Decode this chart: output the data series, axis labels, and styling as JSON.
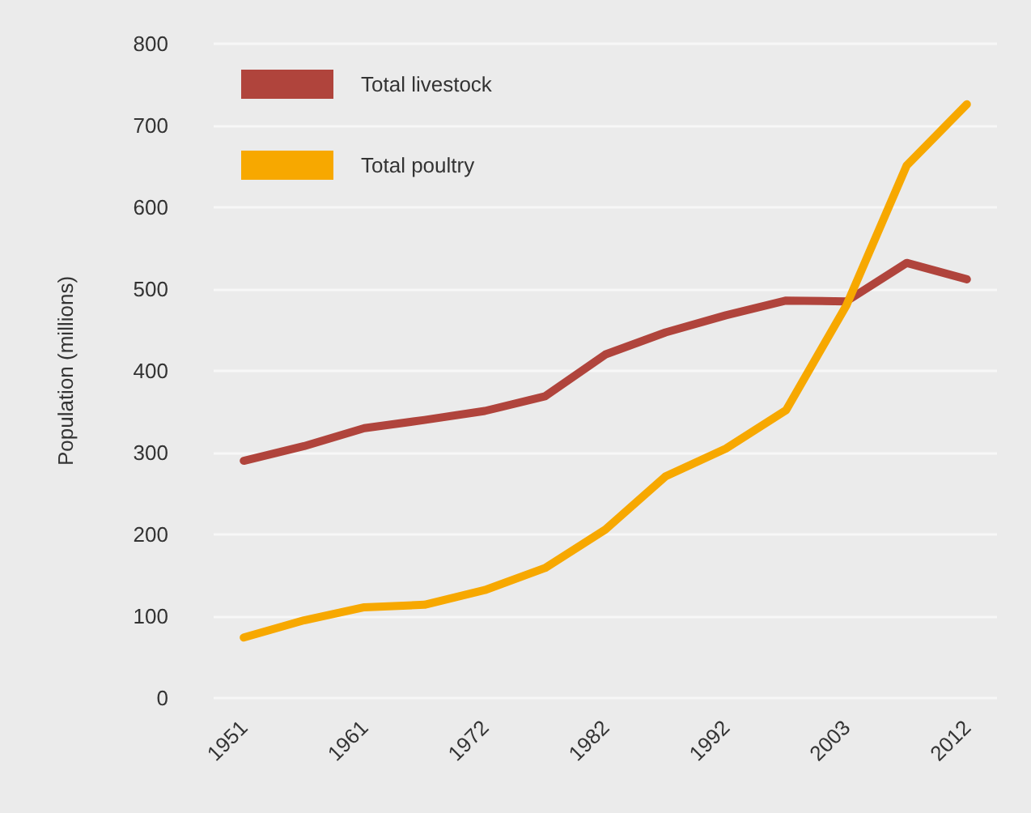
{
  "chart_data": {
    "type": "line",
    "ylabel": "Population (millions)",
    "categories": [
      "1951",
      null,
      "1961",
      null,
      "1972",
      null,
      "1982",
      null,
      "1992",
      null,
      "2003",
      null,
      "2012"
    ],
    "series": [
      {
        "name": "Total livestock",
        "color": "#b0443c",
        "values": [
          290,
          308,
          330,
          340,
          351,
          369,
          420,
          447,
          468,
          486,
          485,
          532,
          512
        ]
      },
      {
        "name": "Total poultry",
        "color": "#f7a800",
        "values": [
          74,
          95,
          111,
          114,
          132,
          159,
          206,
          271,
          305,
          352,
          480,
          651,
          726
        ]
      }
    ],
    "ylim": [
      0,
      800
    ],
    "yticks": [
      0,
      100,
      200,
      300,
      400,
      500,
      600,
      700,
      800
    ],
    "grid": "y",
    "legend": "top left",
    "marker": "none",
    "line_style": "solid"
  }
}
